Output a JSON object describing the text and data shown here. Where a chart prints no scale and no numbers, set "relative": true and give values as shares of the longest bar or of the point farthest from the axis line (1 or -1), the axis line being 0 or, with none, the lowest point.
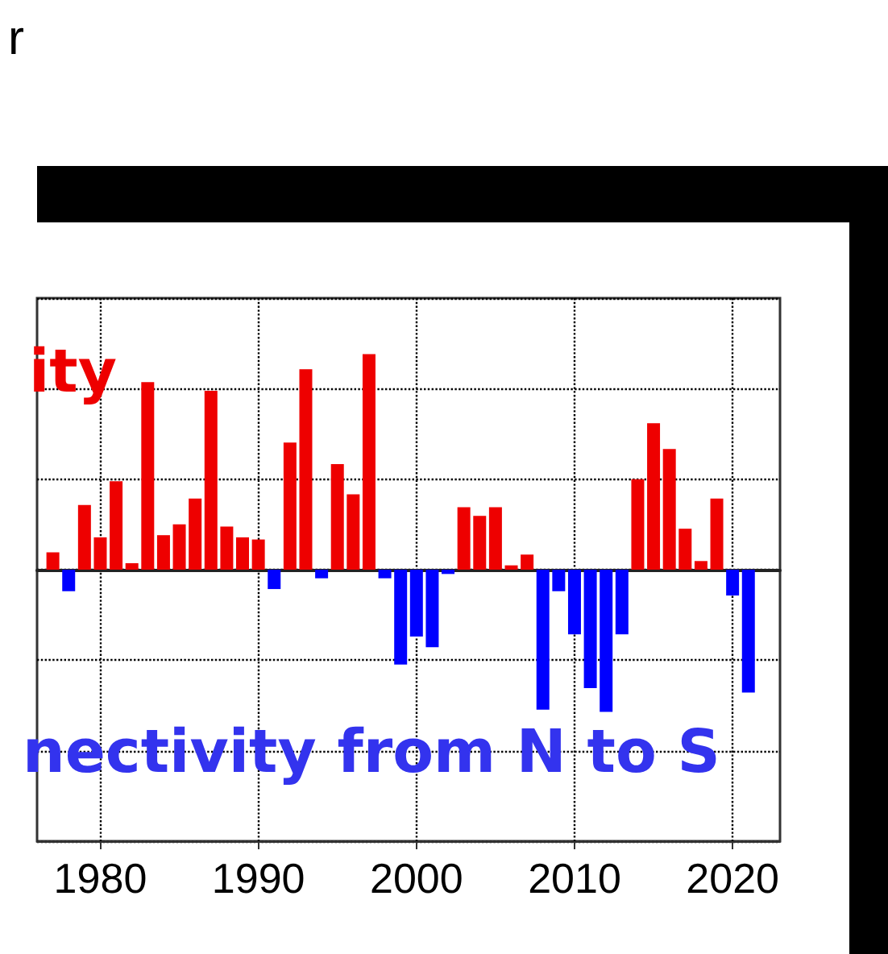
{
  "chart_data": {
    "type": "bar",
    "title": "r",
    "relative": true,
    "annotations": [
      "ity",
      "nectivity from N to S"
    ],
    "x": [
      1977,
      1978,
      1979,
      1980,
      1981,
      1982,
      1983,
      1984,
      1985,
      1986,
      1987,
      1988,
      1989,
      1990,
      1991,
      1992,
      1993,
      1994,
      1995,
      1996,
      1997,
      1998,
      1999,
      2000,
      2001,
      2002,
      2003,
      2004,
      2005,
      2006,
      2007,
      2008,
      2009,
      2010,
      2011,
      2012,
      2013,
      2014,
      2015,
      2016,
      2017,
      2018,
      2019,
      2020,
      2021
    ],
    "values": [
      0.08,
      -0.1,
      0.3,
      0.15,
      0.41,
      0.03,
      0.87,
      0.16,
      0.21,
      0.33,
      0.83,
      0.2,
      0.15,
      0.14,
      -0.09,
      0.59,
      0.93,
      -0.04,
      0.49,
      0.35,
      1,
      -0.04,
      -0.44,
      -0.31,
      -0.36,
      -0.02,
      0.29,
      0.25,
      0.29,
      0.02,
      0.07,
      -0.65,
      -0.1,
      -0.3,
      -0.55,
      -0.66,
      -0.3,
      0.42,
      0.68,
      0.56,
      0.19,
      0.04,
      0.33,
      -0.12,
      -0.57
    ],
    "colors": [
      "#ee0000",
      "#0000ff",
      "#ee0000",
      "#ee0000",
      "#ee0000",
      "#ee0000",
      "#ee0000",
      "#ee0000",
      "#ee0000",
      "#ee0000",
      "#ee0000",
      "#ee0000",
      "#ee0000",
      "#ee0000",
      "#0000ff",
      "#ee0000",
      "#ee0000",
      "#0000ff",
      "#ee0000",
      "#ee0000",
      "#ee0000",
      "#0000ff",
      "#0000ff",
      "#0000ff",
      "#0000ff",
      "#0000ff",
      "#ee0000",
      "#ee0000",
      "#ee0000",
      "#ee0000",
      "#ee0000",
      "#0000ff",
      "#0000ff",
      "#0000ff",
      "#0000ff",
      "#0000ff",
      "#0000ff",
      "#ee0000",
      "#ee0000",
      "#ee0000",
      "#ee0000",
      "#ee0000",
      "#ee0000",
      "#0000ff",
      "#0000ff"
    ],
    "xlim": [
      1976,
      2023
    ],
    "xticks": [
      1980,
      1990,
      2000,
      2010,
      2020
    ],
    "grid": true,
    "tick_labels": "x"
  }
}
